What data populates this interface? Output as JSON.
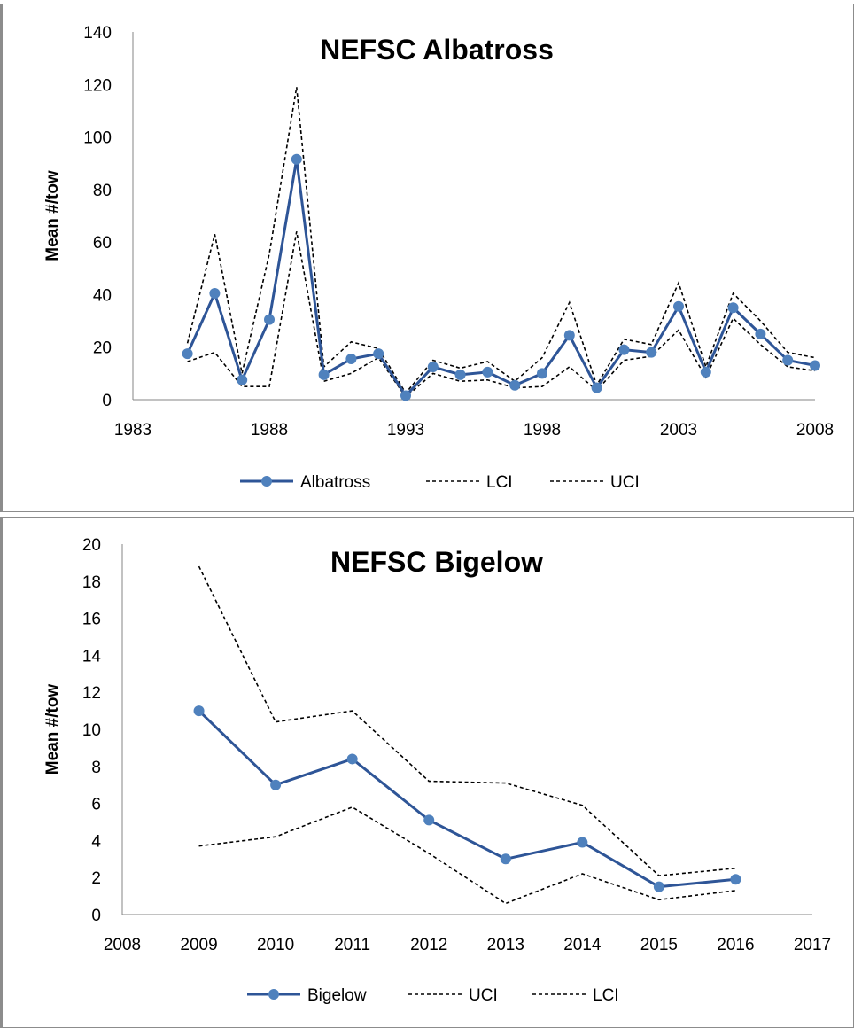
{
  "chart_data": [
    {
      "type": "line",
      "title": "NEFSC Albatross",
      "xlabel": "",
      "ylabel": "Mean #/tow",
      "xlim": [
        1983,
        2008
      ],
      "ylim": [
        0,
        140
      ],
      "xticks": [
        1983,
        1988,
        1993,
        1998,
        2003,
        2008
      ],
      "yticks": [
        0,
        20,
        40,
        60,
        80,
        100,
        120,
        140
      ],
      "grid": false,
      "legend_position": "bottom",
      "legend_order": [
        "Albatross",
        "LCI",
        "UCI"
      ],
      "x": [
        1985,
        1986,
        1987,
        1988,
        1989,
        1990,
        1991,
        1992,
        1993,
        1994,
        1995,
        1996,
        1997,
        1998,
        1999,
        2000,
        2001,
        2002,
        2003,
        2004,
        2005,
        2006,
        2007,
        2008
      ],
      "series": [
        {
          "name": "Albatross",
          "color": "#4f81bd",
          "line_color": "#2e5597",
          "style": "solid-markers",
          "values": [
            17.5,
            40.5,
            7.5,
            30.5,
            91.5,
            9.5,
            15.5,
            17.5,
            1.5,
            12.5,
            9.5,
            10.5,
            5.5,
            10.0,
            24.5,
            4.5,
            19.0,
            18.0,
            35.5,
            10.5,
            35.0,
            25.0,
            15.0,
            13.0
          ]
        },
        {
          "name": "LCI",
          "color": "#000000",
          "style": "dashed",
          "values": [
            14.5,
            18.0,
            5.0,
            5.0,
            64.0,
            7.0,
            10.0,
            16.0,
            1.0,
            10.0,
            7.0,
            7.5,
            4.5,
            5.0,
            12.5,
            3.5,
            15.0,
            16.5,
            26.5,
            8.5,
            31.0,
            21.0,
            12.5,
            11.0
          ]
        },
        {
          "name": "UCI",
          "color": "#000000",
          "style": "dashed",
          "values": [
            21.5,
            63.0,
            10.0,
            55.5,
            119.0,
            12.5,
            22.0,
            19.5,
            2.5,
            15.0,
            12.0,
            14.5,
            7.0,
            16.0,
            37.0,
            5.5,
            23.0,
            21.0,
            44.5,
            12.5,
            40.5,
            30.0,
            18.0,
            16.0
          ]
        }
      ]
    },
    {
      "type": "line",
      "title": "NEFSC Bigelow",
      "xlabel": "",
      "ylabel": "Mean #/tow",
      "xlim": [
        2008,
        2017
      ],
      "ylim": [
        0,
        20
      ],
      "xticks": [
        2008,
        2009,
        2010,
        2011,
        2012,
        2013,
        2014,
        2015,
        2016,
        2017
      ],
      "yticks": [
        0,
        2,
        4,
        6,
        8,
        10,
        12,
        14,
        16,
        18,
        20
      ],
      "grid": false,
      "legend_position": "bottom",
      "legend_order": [
        "Bigelow",
        "UCI",
        "LCI"
      ],
      "x": [
        2009,
        2010,
        2011,
        2012,
        2013,
        2014,
        2015,
        2016
      ],
      "series": [
        {
          "name": "Bigelow",
          "color": "#4f81bd",
          "line_color": "#2e5597",
          "style": "solid-markers",
          "values": [
            11.0,
            7.0,
            8.4,
            5.1,
            3.0,
            3.9,
            1.5,
            1.9
          ]
        },
        {
          "name": "UCI",
          "color": "#000000",
          "style": "dashed",
          "values": [
            18.8,
            10.4,
            11.0,
            7.2,
            7.1,
            5.9,
            2.1,
            2.5
          ]
        },
        {
          "name": "LCI",
          "color": "#000000",
          "style": "dashed",
          "values": [
            3.7,
            4.2,
            5.8,
            3.3,
            0.6,
            2.2,
            0.8,
            1.3
          ]
        }
      ]
    }
  ]
}
